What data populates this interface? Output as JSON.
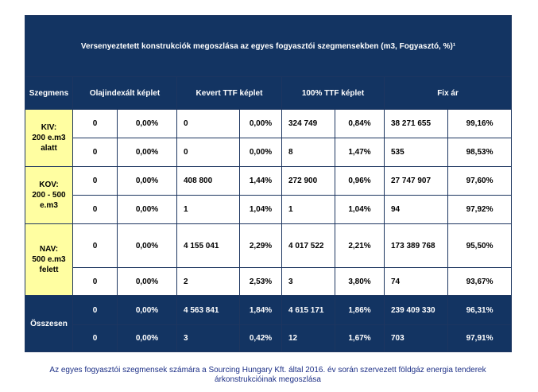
{
  "title": "Versenyeztetett konstrukciók megoszlása az egyes fogyasztói szegmensekben (m3, Fogyasztó, %)¹",
  "headers": {
    "segment": "Szegmens",
    "olaj": "Olajindexált képlet",
    "kevert": "Kevert TTF képlet",
    "ttf100": "100% TTF képlet",
    "fix": "Fix ár"
  },
  "segments": [
    {
      "label": "KIV:\n200 e.m3\nalatt",
      "rows": [
        [
          "0",
          "0,00%",
          "0",
          "0,00%",
          "324 749",
          "0,84%",
          "38 271 655",
          "99,16%"
        ],
        [
          "0",
          "0,00%",
          "0",
          "0,00%",
          "8",
          "1,47%",
          "535",
          "98,53%"
        ]
      ]
    },
    {
      "label": "KOV:\n200 - 500\ne.m3",
      "rows": [
        [
          "0",
          "0,00%",
          "408 800",
          "1,44%",
          "272 900",
          "0,96%",
          "27 747 907",
          "97,60%"
        ],
        [
          "0",
          "0,00%",
          "1",
          "1,04%",
          "1",
          "1,04%",
          "94",
          "97,92%"
        ]
      ]
    },
    {
      "label": "NAV:\n500 e.m3\nfelett",
      "rows": [
        [
          "0",
          "0,00%",
          "4 155 041",
          "2,29%",
          "4 017 522",
          "2,21%",
          "173 389 768",
          "95,50%"
        ],
        [
          "0",
          "0,00%",
          "2",
          "2,53%",
          "3",
          "3,80%",
          "74",
          "93,67%"
        ]
      ]
    }
  ],
  "total": {
    "label": "Összesen",
    "rows": [
      [
        "0",
        "0,00%",
        "4 563 841",
        "1,84%",
        "4 615 171",
        "1,86%",
        "239 409 330",
        "96,31%"
      ],
      [
        "0",
        "0,00%",
        "3",
        "0,42%",
        "12",
        "1,67%",
        "703",
        "97,91%"
      ]
    ]
  },
  "caption": "Az egyes fogyasztói szegmensek számára a Sourcing Hungary Kft. által 2016. év során szervezett földgáz energia tenderek árkonstrukcióinak megoszlása",
  "colors": {
    "header_bg": "#133462",
    "segment_bg": "#fffea1",
    "caption_text": "#1c2f86"
  }
}
